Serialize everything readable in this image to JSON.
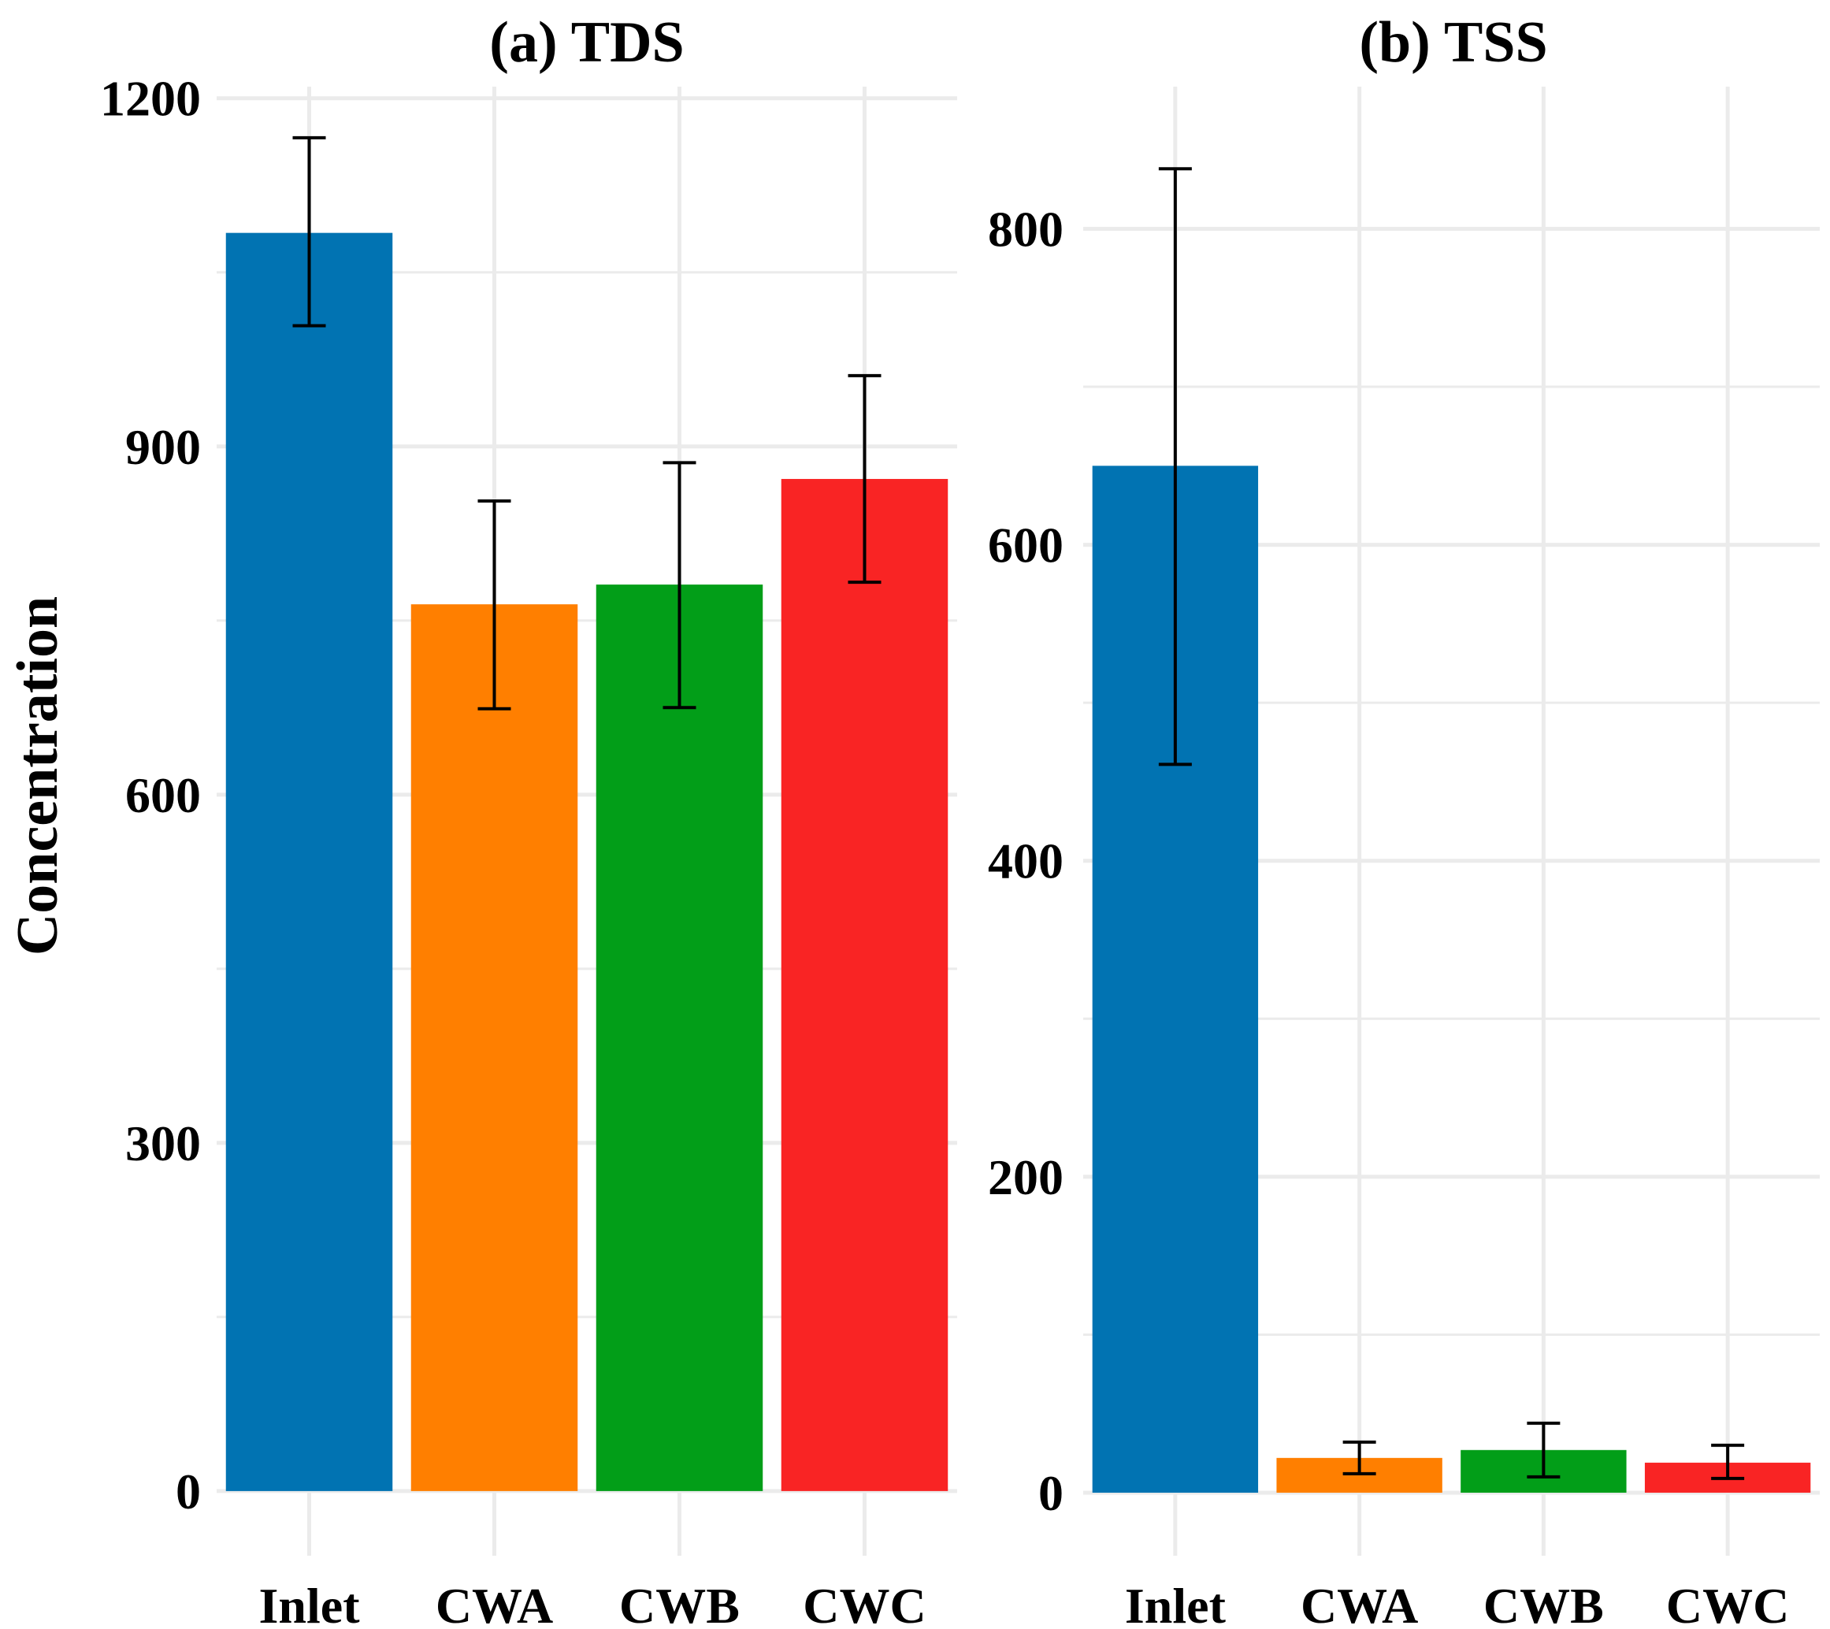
{
  "chart_data": {
    "type": "bar",
    "ylabel": "Concentration",
    "panels": [
      {
        "title": "(a) TDS",
        "categories": [
          "Inlet",
          "CWA",
          "CWB",
          "CWC"
        ],
        "values": [
          1084,
          764,
          781,
          872
        ],
        "error_low": [
          1004,
          674,
          675,
          783
        ],
        "error_high": [
          1166,
          853,
          886,
          961
        ],
        "ylim": [
          -15,
          1210
        ],
        "yticks": [
          0,
          300,
          600,
          900,
          1200
        ],
        "ytick_labels": [
          "0",
          "300",
          "600",
          "900",
          "1200"
        ],
        "grid": true
      },
      {
        "title": "(b) TSS",
        "categories": [
          "Inlet",
          "CWA",
          "CWB",
          "CWC"
        ],
        "values": [
          650,
          22,
          27,
          19
        ],
        "error_low": [
          461,
          12,
          10,
          9
        ],
        "error_high": [
          838,
          32,
          44,
          30
        ],
        "ylim": [
          -10,
          890
        ],
        "yticks": [
          0,
          200,
          400,
          600,
          800
        ],
        "ytick_labels": [
          "0",
          "200",
          "400",
          "600",
          "800"
        ],
        "grid": true
      }
    ],
    "colors": {
      "Inlet": "#0173B2",
      "CWA": "#FF7F00",
      "CWB": "#029E18",
      "CWC": "#F92424"
    },
    "error_bar_color": "#000000",
    "grid_color": "#EBEBEB"
  }
}
